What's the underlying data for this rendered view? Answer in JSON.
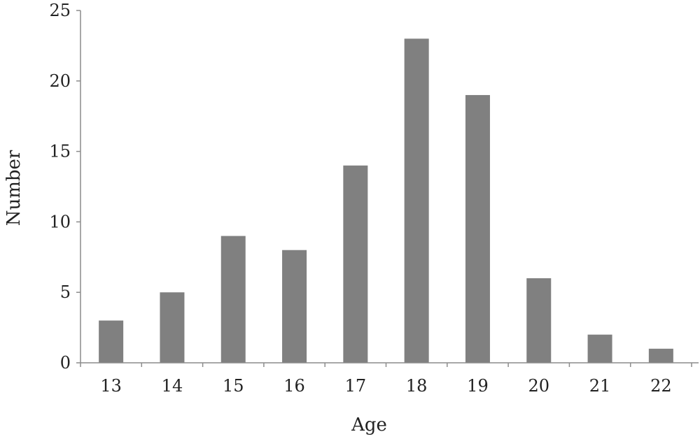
{
  "chart_data": {
    "type": "bar",
    "title": "",
    "xlabel": "Age",
    "ylabel": "Number",
    "categories": [
      "13",
      "14",
      "15",
      "16",
      "17",
      "18",
      "19",
      "20",
      "21",
      "22"
    ],
    "values": [
      3,
      5,
      9,
      8,
      14,
      23,
      19,
      6,
      2,
      1
    ],
    "ylim": [
      0,
      25
    ],
    "yticks": [
      "0",
      "5",
      "10",
      "15",
      "20",
      "25"
    ],
    "grid": false,
    "legend": "none",
    "bar_color": "#808080",
    "axis_color": "#8c8c8c"
  }
}
